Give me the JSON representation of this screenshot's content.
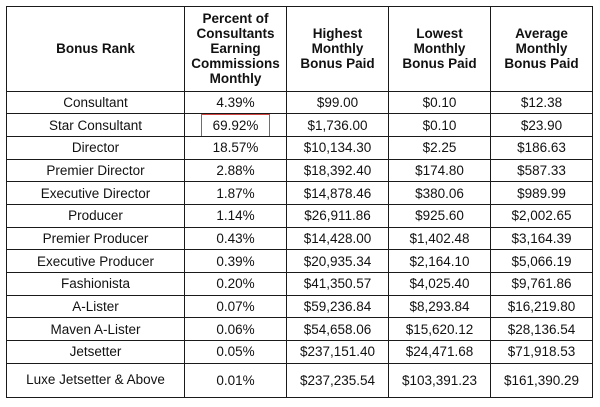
{
  "table": {
    "headers": [
      "Bonus Rank",
      "Percent of Consultants Earning Commissions Monthly",
      "Highest Monthly Bonus Paid",
      "Lowest Monthly Bonus Paid",
      "Average Monthly Bonus Paid"
    ],
    "rows": [
      [
        "Consultant",
        "4.39%",
        "$99.00",
        "$0.10",
        "$12.38"
      ],
      [
        "Star Consultant",
        "69.92%",
        "$1,736.00",
        "$0.10",
        "$23.90"
      ],
      [
        "Director",
        "18.57%",
        "$10,134.30",
        "$2.25",
        "$186.63"
      ],
      [
        "Premier Director",
        "2.88%",
        "$18,392.40",
        "$174.80",
        "$587.33"
      ],
      [
        "Executive Director",
        "1.87%",
        "$14,878.46",
        "$380.06",
        "$989.99"
      ],
      [
        "Producer",
        "1.14%",
        "$26,911.86",
        "$925.60",
        "$2,002.65"
      ],
      [
        "Premier Producer",
        "0.43%",
        "$14,428.00",
        "$1,402.48",
        "$3,164.39"
      ],
      [
        "Executive Producer",
        "0.39%",
        "$20,935.34",
        "$2,164.10",
        "$5,066.19"
      ],
      [
        "Fashionista",
        "0.20%",
        "$41,350.57",
        "$4,025.40",
        "$9,761.86"
      ],
      [
        "A-Lister",
        "0.07%",
        "$59,236.84",
        "$8,293.84",
        "$16,219.80"
      ],
      [
        "Maven A-Lister",
        "0.06%",
        "$54,658.06",
        "$15,620.12",
        "$28,136.54"
      ],
      [
        "Jetsetter",
        "0.05%",
        "$237,151.40",
        "$24,471.68",
        "$71,918.53"
      ],
      [
        "Luxe Jetsetter & Above",
        "0.01%",
        "$237,235.54",
        "$103,391.23",
        "$161,390.29"
      ]
    ],
    "highlight_color": "#d0453f"
  }
}
